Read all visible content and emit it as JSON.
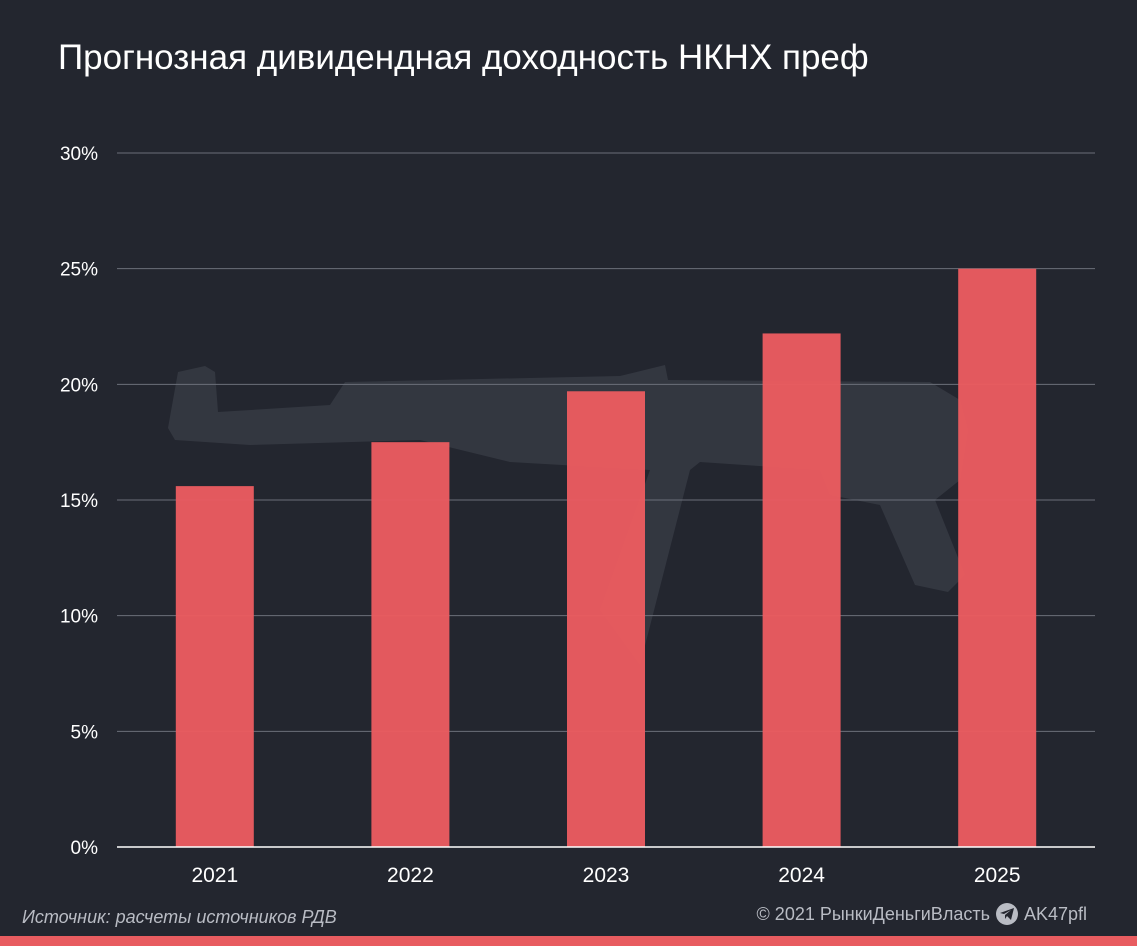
{
  "colors": {
    "background": "#23262f",
    "bar": "#eb5c60",
    "grid": "#6b6f7a",
    "axis": "#ffffff",
    "text": "#ffffff",
    "footer_text": "#b9bcc4",
    "accent_strip": "#e85c60"
  },
  "header": {
    "title": "Прогнозная дивидендная доходность НКНХ преф"
  },
  "chart_data": {
    "type": "bar",
    "title": "Прогнозная дивидендная доходность НКНХ преф",
    "categories": [
      "2021",
      "2022",
      "2023",
      "2024",
      "2025"
    ],
    "values": [
      15.6,
      17.5,
      19.7,
      22.2,
      25.0
    ],
    "ylim": [
      0,
      30
    ],
    "yticks": [
      0,
      5,
      10,
      15,
      20,
      25,
      30
    ],
    "ytick_labels": [
      "0%",
      "5%",
      "10%",
      "15%",
      "20%",
      "25%",
      "30%"
    ],
    "xlabel": "",
    "ylabel": "",
    "grid": true,
    "legend": "none"
  },
  "footer": {
    "source": "Источник: расчеты источников РДВ",
    "copyright": "© 2021  РынкиДеньгиВласть",
    "channel": "AK47pfl",
    "channel_icon": "telegram-icon"
  }
}
